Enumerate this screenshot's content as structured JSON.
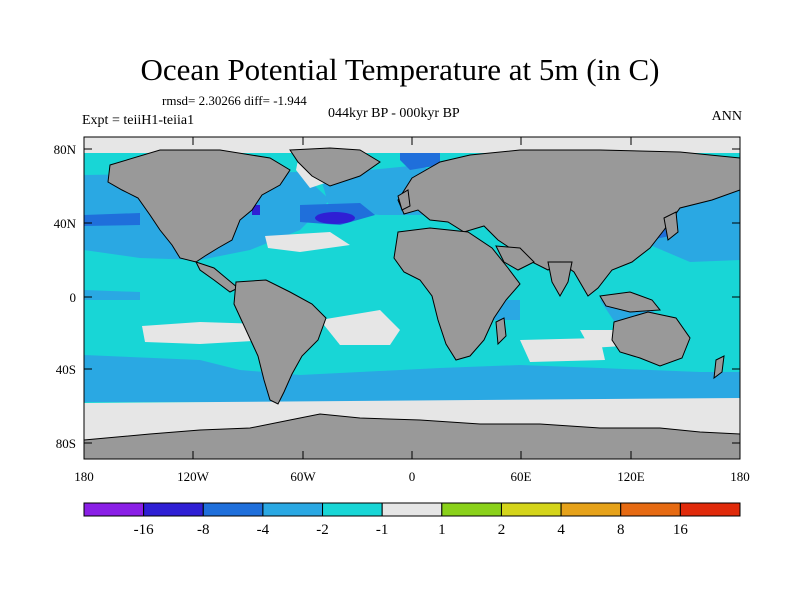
{
  "title": "Ocean Potential Temperature at 5m (in C)",
  "stats": "rmsd= 2.30266 diff= -1.944",
  "period": "044kyr BP - 000kyr BP",
  "experiment": "Expt = teiiH1-teiia1",
  "season": "ANN",
  "y_ticks": [
    "80N",
    "40N",
    "0",
    "40S",
    "80S"
  ],
  "x_ticks": [
    "180",
    "120W",
    "60W",
    "0",
    "60E",
    "120E",
    "180"
  ],
  "colorbar": {
    "colors": [
      "#8a1fe6",
      "#2f1fd4",
      "#1f6fdb",
      "#2aa8e3",
      "#18d6d6",
      "#e6e6e6",
      "#8ad11a",
      "#d4d41a",
      "#e6a21a",
      "#e66a12",
      "#e02a0a"
    ],
    "labels": [
      "-16",
      "-8",
      "-4",
      "-2",
      "-1",
      "1",
      "2",
      "4",
      "8",
      "16"
    ]
  },
  "colors": {
    "land": "#999999",
    "sea_ice": "#e6e6e6",
    "ocean_main": "#18d6d6",
    "ocean_cool": "#2aa8e3",
    "ocean_cold": "#1f6fdb",
    "ocean_coldest": "#2f1fd4"
  }
}
